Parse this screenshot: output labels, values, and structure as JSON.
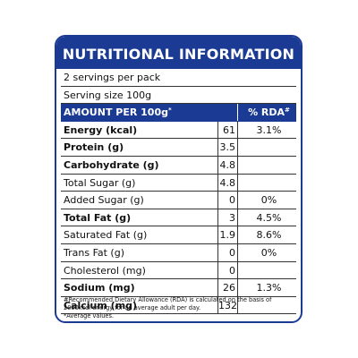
{
  "label": {
    "title": "NUTRITIONAL INFORMATION",
    "servings_per_pack": "2 servings per pack",
    "serving_size": "Serving size 100g",
    "header": {
      "amount": "AMOUNT PER 100g",
      "amount_mark": "*",
      "rda": "% RDA",
      "rda_mark": "#"
    },
    "rows": [
      {
        "name": "Energy (kcal)",
        "value": "61",
        "rda": "3.1%"
      },
      {
        "name": "Protein (g)",
        "value": "3.5",
        "rda": ""
      },
      {
        "name": "Carbohydrate (g)",
        "value": "4.8",
        "rda": ""
      },
      {
        "name": "Total Sugar (g)",
        "value": "4.8",
        "rda": ""
      },
      {
        "name": "Added Sugar (g)",
        "value": "0",
        "rda": "0%"
      },
      {
        "name": "Total Fat (g)",
        "value": "3",
        "rda": "4.5%"
      },
      {
        "name": "Saturated Fat (g)",
        "value": "1.9",
        "rda": "8.6%"
      },
      {
        "name": "Trans Fat (g)",
        "value": "0",
        "rda": "0%"
      },
      {
        "name": "Cholesterol (mg)",
        "value": "0",
        "rda": ""
      },
      {
        "name": "Sodium (mg)",
        "value": "26",
        "rda": "1.3%"
      },
      {
        "name": "Calcium (mg)",
        "value": "132",
        "rda": ""
      }
    ],
    "footnote_rda": "#Recommended Dietary Allowance (RDA) is calculated on the basis of 2000kcal energy for an average adult per day.",
    "footnote_avg": "*Average values.",
    "colors": {
      "brand_blue": "#1a3a94",
      "text": "#111111",
      "background": "#ffffff"
    }
  }
}
